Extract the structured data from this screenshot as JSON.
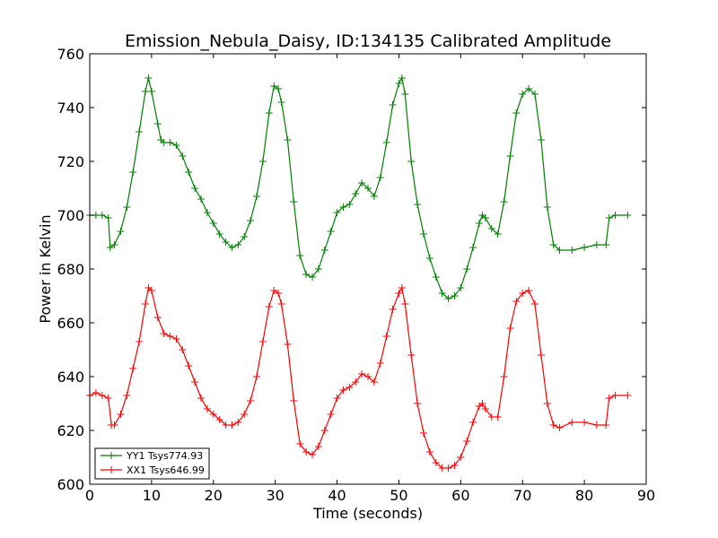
{
  "chart_data": {
    "type": "line",
    "title": "Emission_Nebula_Daisy, ID:134135 Calibrated Amplitude",
    "xlabel": "Time (seconds)",
    "ylabel": "Power in Kelvin",
    "xlim": [
      0,
      90
    ],
    "ylim": [
      600,
      760
    ],
    "xticks": [
      "0",
      "10",
      "20",
      "30",
      "40",
      "50",
      "60",
      "70",
      "80",
      "90"
    ],
    "yticks": [
      "600",
      "620",
      "640",
      "660",
      "680",
      "700",
      "720",
      "740",
      "760"
    ],
    "grid": false,
    "legend_position": "lower-left",
    "series": [
      {
        "name": "YY1 Tsys774.93",
        "color": "#008000",
        "points": [
          [
            0,
            700
          ],
          [
            1,
            700
          ],
          [
            2,
            700
          ],
          [
            3,
            699
          ],
          [
            3.3,
            688
          ],
          [
            4,
            689
          ],
          [
            5,
            694
          ],
          [
            6,
            703
          ],
          [
            7,
            716
          ],
          [
            8,
            731
          ],
          [
            9,
            746
          ],
          [
            9.5,
            751
          ],
          [
            10,
            746
          ],
          [
            11,
            734
          ],
          [
            11.5,
            728
          ],
          [
            12,
            727
          ],
          [
            13,
            727
          ],
          [
            14,
            726
          ],
          [
            15,
            722
          ],
          [
            16,
            716
          ],
          [
            17,
            710
          ],
          [
            18,
            706
          ],
          [
            19,
            701
          ],
          [
            20,
            697
          ],
          [
            21,
            693
          ],
          [
            22,
            690
          ],
          [
            23,
            688
          ],
          [
            24,
            689
          ],
          [
            25,
            692
          ],
          [
            26,
            698
          ],
          [
            27,
            707
          ],
          [
            28,
            720
          ],
          [
            29,
            738
          ],
          [
            29.8,
            748
          ],
          [
            30.5,
            747
          ],
          [
            31,
            742
          ],
          [
            32,
            728
          ],
          [
            33,
            705
          ],
          [
            34,
            685
          ],
          [
            35,
            678
          ],
          [
            36,
            677
          ],
          [
            37,
            680
          ],
          [
            38,
            687
          ],
          [
            39,
            694
          ],
          [
            40,
            701
          ],
          [
            41,
            703
          ],
          [
            42,
            704
          ],
          [
            43,
            708
          ],
          [
            44,
            712
          ],
          [
            45,
            710
          ],
          [
            46,
            707
          ],
          [
            47,
            714
          ],
          [
            48,
            727
          ],
          [
            49,
            741
          ],
          [
            50,
            749
          ],
          [
            50.5,
            751
          ],
          [
            51,
            745
          ],
          [
            52,
            720
          ],
          [
            53,
            704
          ],
          [
            54,
            693
          ],
          [
            55,
            684
          ],
          [
            56,
            677
          ],
          [
            57,
            671
          ],
          [
            58,
            669
          ],
          [
            59,
            670
          ],
          [
            60,
            673
          ],
          [
            61,
            680
          ],
          [
            62,
            688
          ],
          [
            63,
            697
          ],
          [
            63.5,
            700
          ],
          [
            64,
            699
          ],
          [
            65,
            695
          ],
          [
            66,
            693
          ],
          [
            67,
            705
          ],
          [
            68,
            722
          ],
          [
            69,
            738
          ],
          [
            70,
            745
          ],
          [
            71,
            747
          ],
          [
            72,
            745
          ],
          [
            73,
            728
          ],
          [
            74,
            703
          ],
          [
            75,
            689
          ],
          [
            76,
            687
          ],
          [
            78,
            687
          ],
          [
            80,
            688
          ],
          [
            82,
            689
          ],
          [
            83.5,
            689
          ],
          [
            84,
            699
          ],
          [
            85,
            700
          ],
          [
            87,
            700
          ]
        ]
      },
      {
        "name": "XX1 Tsys646.99",
        "color": "#ff0000",
        "points": [
          [
            0,
            633
          ],
          [
            1,
            634
          ],
          [
            2,
            633
          ],
          [
            3,
            632
          ],
          [
            3.5,
            622
          ],
          [
            4,
            622
          ],
          [
            5,
            626
          ],
          [
            6,
            633
          ],
          [
            7,
            643
          ],
          [
            8,
            653
          ],
          [
            9,
            667
          ],
          [
            9.5,
            673
          ],
          [
            10,
            672
          ],
          [
            11,
            662
          ],
          [
            12,
            656
          ],
          [
            13,
            655
          ],
          [
            14,
            654
          ],
          [
            15,
            650
          ],
          [
            16,
            644
          ],
          [
            17,
            638
          ],
          [
            18,
            632
          ],
          [
            19,
            628
          ],
          [
            20,
            626
          ],
          [
            21,
            624
          ],
          [
            22,
            622
          ],
          [
            23,
            622
          ],
          [
            24,
            623
          ],
          [
            25,
            626
          ],
          [
            26,
            631
          ],
          [
            27,
            640
          ],
          [
            28,
            653
          ],
          [
            29,
            666
          ],
          [
            29.8,
            672
          ],
          [
            30.5,
            671
          ],
          [
            31,
            667
          ],
          [
            32,
            652
          ],
          [
            33,
            631
          ],
          [
            34,
            615
          ],
          [
            35,
            612
          ],
          [
            36,
            611
          ],
          [
            37,
            614
          ],
          [
            38,
            620
          ],
          [
            39,
            626
          ],
          [
            40,
            632
          ],
          [
            41,
            635
          ],
          [
            42,
            636
          ],
          [
            43,
            638
          ],
          [
            44,
            641
          ],
          [
            45,
            640
          ],
          [
            46,
            638
          ],
          [
            47,
            645
          ],
          [
            48,
            655
          ],
          [
            49,
            665
          ],
          [
            50,
            671
          ],
          [
            50.5,
            673
          ],
          [
            51,
            667
          ],
          [
            52,
            648
          ],
          [
            53,
            630
          ],
          [
            54,
            619
          ],
          [
            55,
            612
          ],
          [
            56,
            608
          ],
          [
            57,
            606
          ],
          [
            58,
            606
          ],
          [
            59,
            607
          ],
          [
            60,
            610
          ],
          [
            61,
            616
          ],
          [
            62,
            623
          ],
          [
            63,
            629
          ],
          [
            63.5,
            630
          ],
          [
            64,
            628
          ],
          [
            65,
            625
          ],
          [
            66,
            625
          ],
          [
            67,
            640
          ],
          [
            68,
            658
          ],
          [
            69,
            668
          ],
          [
            70,
            671
          ],
          [
            71,
            672
          ],
          [
            72,
            667
          ],
          [
            73,
            648
          ],
          [
            74,
            630
          ],
          [
            75,
            622
          ],
          [
            76,
            621
          ],
          [
            78,
            623
          ],
          [
            80,
            623
          ],
          [
            82,
            622
          ],
          [
            83.5,
            622
          ],
          [
            84,
            632
          ],
          [
            85,
            633
          ],
          [
            87,
            633
          ]
        ]
      }
    ]
  }
}
